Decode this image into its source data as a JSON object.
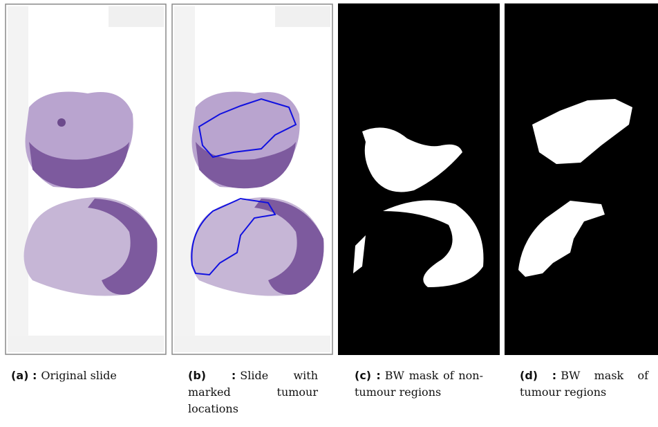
{
  "figure": {
    "panels": [
      {
        "label": "(a) :",
        "caption": "Original slide"
      },
      {
        "label": "(b) :",
        "caption": "Slide with marked tumour locations"
      },
      {
        "label": "(c) :",
        "caption": "BW mask of non-tumour regions"
      },
      {
        "label": "(d) :",
        "caption": "BW mask of tumour regions"
      }
    ]
  }
}
